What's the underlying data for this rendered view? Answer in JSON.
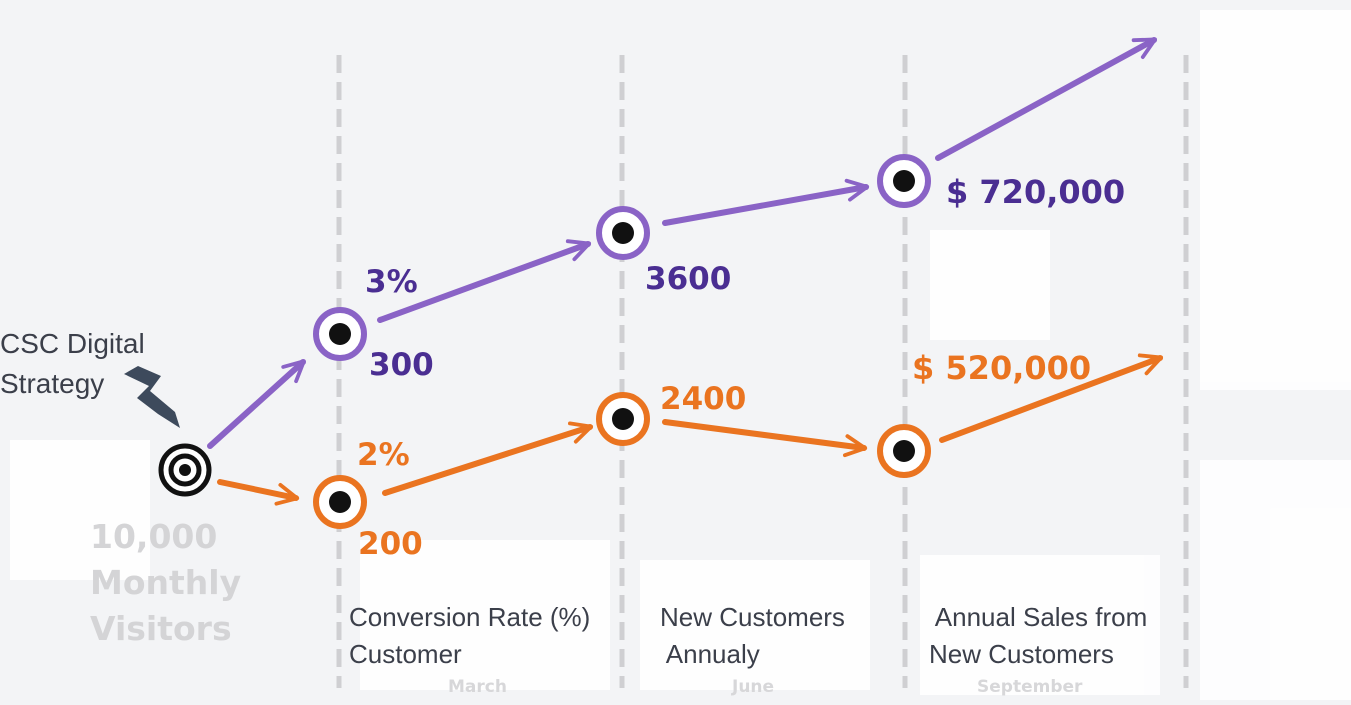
{
  "source": "CSC Digital\nStrategy",
  "visitors": "10,000\nMonthly\nVisitors",
  "purple_path": {
    "color": "#8a63c6",
    "text_color": "#4a2e92",
    "labels": [
      "3%",
      "300",
      "3600",
      "$ 720,000"
    ]
  },
  "orange_path": {
    "color": "#ea7420",
    "text_color": "#ea7420",
    "labels": [
      "2%",
      "200",
      "2400",
      "$ 520,000"
    ]
  },
  "stages": [
    {
      "label": "Conversion Rate (%)\nCustomer",
      "month": "March"
    },
    {
      "label": "New Customers\n Annualy",
      "month": "June"
    },
    {
      "label": " Annual Sales from\nNew Customers",
      "month": "September"
    }
  ]
}
